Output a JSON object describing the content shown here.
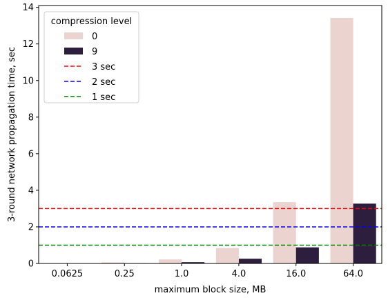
{
  "chart_data": {
    "type": "bar",
    "title": "",
    "xlabel": "maximum block size, MB",
    "ylabel": "3-round network propagation time, sec",
    "categories": [
      "0.0625",
      "0.25",
      "1.0",
      "4.0",
      "16.0",
      "64.0"
    ],
    "ylim": [
      0,
      14.1
    ],
    "yticks": [
      0,
      2,
      4,
      6,
      8,
      10,
      12,
      14
    ],
    "grid": false,
    "legend": {
      "title": "compression level",
      "placement": "top-left"
    },
    "series": [
      {
        "name": "0",
        "color": "#ebd3d0",
        "values": [
          0.02,
          0.06,
          0.22,
          0.84,
          3.35,
          13.42
        ]
      },
      {
        "name": "9",
        "color": "#2d1e3e",
        "values": [
          0.01,
          0.02,
          0.07,
          0.26,
          0.88,
          3.27
        ]
      }
    ],
    "reference_lines": [
      {
        "name": "3 sec",
        "value": 3,
        "color": "#ff0000"
      },
      {
        "name": "2 sec",
        "value": 2,
        "color": "#0000ff"
      },
      {
        "name": "1 sec",
        "value": 1,
        "color": "#008000"
      }
    ]
  }
}
